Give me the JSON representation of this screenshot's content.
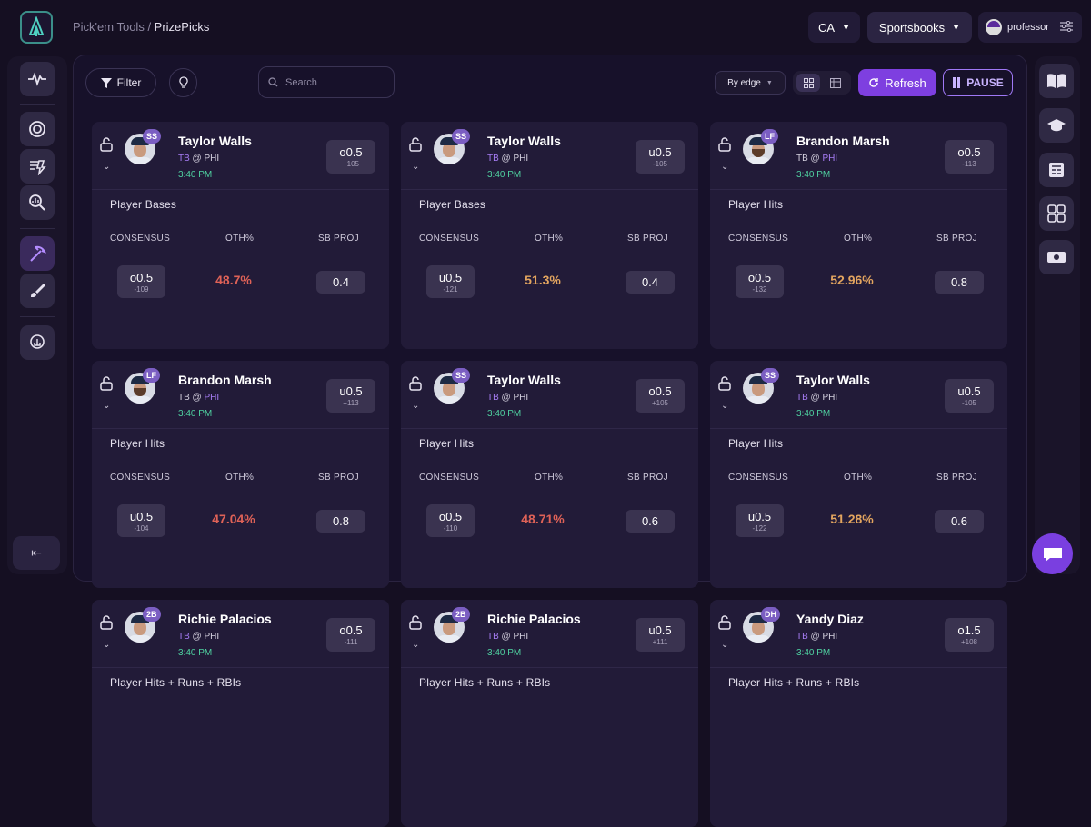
{
  "breadcrumb": {
    "parent": "Pick'em Tools",
    "sep": " / ",
    "current": "PrizePicks"
  },
  "header": {
    "region": "CA",
    "sportsbooks": "Sportsbooks",
    "username": "professor"
  },
  "toolbar": {
    "filter": "Filter",
    "search_placeholder": "Search",
    "sort": "By edge",
    "refresh": "Refresh",
    "pause": "PAUSE"
  },
  "columns": {
    "consensus": "CONSENSUS",
    "oth": "OTH%",
    "sbproj": "SB PROJ"
  },
  "colors": {
    "accent": "#7e3fe0",
    "oth_red": "#df6257",
    "oth_orange": "#e3a55f",
    "time_green": "#4fd1a0",
    "team_highlight": "#a77df5"
  },
  "cards": [
    {
      "name": "Taylor Walls",
      "pos": "SS",
      "away": "TB",
      "home": "PHI",
      "hl": "away",
      "time": "3:40 PM",
      "line": "o0.5",
      "line_odds": "+105",
      "market": "Player Bases",
      "cons_line": "o0.5",
      "cons_odds": "-109",
      "oth": "48.7%",
      "oth_color": "red",
      "sb": "0.4",
      "beard": false
    },
    {
      "name": "Taylor Walls",
      "pos": "SS",
      "away": "TB",
      "home": "PHI",
      "hl": "away",
      "time": "3:40 PM",
      "line": "u0.5",
      "line_odds": "-105",
      "market": "Player Bases",
      "cons_line": "u0.5",
      "cons_odds": "-121",
      "oth": "51.3%",
      "oth_color": "orange",
      "sb": "0.4",
      "beard": false
    },
    {
      "name": "Brandon Marsh",
      "pos": "LF",
      "away": "TB",
      "home": "PHI",
      "hl": "home",
      "time": "3:40 PM",
      "line": "o0.5",
      "line_odds": "-113",
      "market": "Player Hits",
      "cons_line": "o0.5",
      "cons_odds": "-132",
      "oth": "52.96%",
      "oth_color": "orange",
      "sb": "0.8",
      "beard": true
    },
    {
      "name": "Brandon Marsh",
      "pos": "LF",
      "away": "TB",
      "home": "PHI",
      "hl": "home",
      "time": "3:40 PM",
      "line": "u0.5",
      "line_odds": "+113",
      "market": "Player Hits",
      "cons_line": "u0.5",
      "cons_odds": "-104",
      "oth": "47.04%",
      "oth_color": "red",
      "sb": "0.8",
      "beard": true
    },
    {
      "name": "Taylor Walls",
      "pos": "SS",
      "away": "TB",
      "home": "PHI",
      "hl": "away",
      "time": "3:40 PM",
      "line": "o0.5",
      "line_odds": "+105",
      "market": "Player Hits",
      "cons_line": "o0.5",
      "cons_odds": "-110",
      "oth": "48.71%",
      "oth_color": "red",
      "sb": "0.6",
      "beard": false
    },
    {
      "name": "Taylor Walls",
      "pos": "SS",
      "away": "TB",
      "home": "PHI",
      "hl": "away",
      "time": "3:40 PM",
      "line": "u0.5",
      "line_odds": "-105",
      "market": "Player Hits",
      "cons_line": "u0.5",
      "cons_odds": "-122",
      "oth": "51.28%",
      "oth_color": "orange",
      "sb": "0.6",
      "beard": false
    },
    {
      "name": "Richie Palacios",
      "pos": "2B",
      "away": "TB",
      "home": "PHI",
      "hl": "away",
      "time": "3:40 PM",
      "line": "o0.5",
      "line_odds": "-111",
      "market": "Player Hits + Runs + RBIs",
      "beard": false
    },
    {
      "name": "Richie Palacios",
      "pos": "2B",
      "away": "TB",
      "home": "PHI",
      "hl": "away",
      "time": "3:40 PM",
      "line": "u0.5",
      "line_odds": "+111",
      "market": "Player Hits + Runs + RBIs",
      "beard": false
    },
    {
      "name": "Yandy Diaz",
      "pos": "DH",
      "away": "TB",
      "home": "PHI",
      "hl": "away",
      "time": "3:40 PM",
      "line": "o1.5",
      "line_odds": "+108",
      "market": "Player Hits + Runs + RBIs",
      "beard": false
    }
  ]
}
